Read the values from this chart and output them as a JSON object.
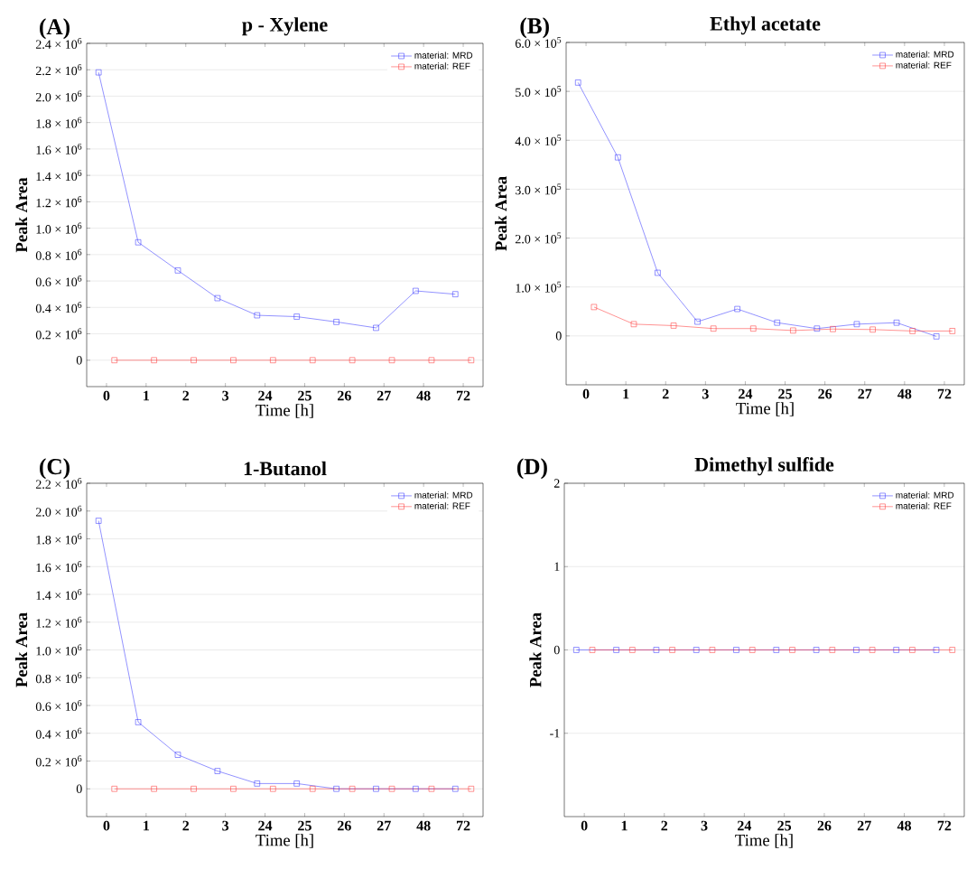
{
  "chart_data": [
    {
      "type": "line",
      "title": "p - Xylene",
      "xlabel": "Time [h]",
      "ylabel": "Peak Area",
      "annotations": [
        "(A)"
      ],
      "categories": [
        "0",
        "1",
        "2",
        "3",
        "24",
        "25",
        "26",
        "27",
        "48",
        "72"
      ],
      "series": [
        {
          "name": "material: MRD",
          "color": "#3333ff",
          "values": [
            2180000,
            893000,
            680000,
            470000,
            340000,
            330000,
            290000,
            245000,
            525000,
            500000
          ]
        },
        {
          "name": "material: REF",
          "color": "#ff3333",
          "values": [
            0,
            0,
            0,
            0,
            0,
            0,
            0,
            0,
            0,
            0
          ]
        }
      ],
      "ylim": [
        -200000,
        2400000
      ],
      "yticks": [
        0,
        {
          "value": 200000,
          "label": "0.2 × 10$^{6}$"
        },
        {
          "value": 400000,
          "label": "0.4 × 10$^{6}$"
        },
        {
          "value": 600000,
          "label": "0.6 × 10$^{6}$"
        },
        {
          "value": 800000,
          "label": "0.8 × 10$^{6}$"
        },
        {
          "value": 1000000,
          "label": "1.0 × 10$^{6}$"
        },
        {
          "value": 1200000,
          "label": "1.2 × 10$^{6}$"
        },
        {
          "value": 1400000,
          "label": "1.4 × 10$^{6}$"
        },
        {
          "value": 1600000,
          "label": "1.6 × 10$^{6}$"
        },
        {
          "value": 1800000,
          "label": "1.8 × 10$^{6}$"
        },
        {
          "value": 2000000,
          "label": "2.0 × 10$^{6}$"
        },
        {
          "value": 2200000,
          "label": "2.2 × 10$^{6}$"
        },
        {
          "value": 2400000,
          "label": "2.4 × 10$^{6}$"
        }
      ],
      "grid": "y",
      "legend": "top right",
      "marker": "square"
    },
    {
      "type": "line",
      "title": "Ethyl acetate",
      "xlabel": "Time [h]",
      "ylabel": "Peak Area",
      "annotations": [
        "(B)"
      ],
      "categories": [
        "0",
        "1",
        "2",
        "3",
        "24",
        "25",
        "26",
        "27",
        "48",
        "72"
      ],
      "series": [
        {
          "name": "material: MRD",
          "color": "#3333ff",
          "values": [
            518000,
            365000,
            129000,
            29000,
            55000,
            27000,
            15000,
            24000,
            27000,
            -1000
          ]
        },
        {
          "name": "material: REF",
          "color": "#ff3333",
          "values": [
            59000,
            24000,
            21000,
            15000,
            15000,
            11000,
            14000,
            13000,
            10000,
            10000
          ]
        }
      ],
      "ylim": [
        -100000,
        600000
      ],
      "yticks": [
        0,
        {
          "value": 100000,
          "label": "1.0 × 10$^{5}$"
        },
        {
          "value": 200000,
          "label": "2.0 × 10$^{5}$"
        },
        {
          "value": 300000,
          "label": "3.0 × 10$^{5}$"
        },
        {
          "value": 400000,
          "label": "4.0 × 10$^{5}$"
        },
        {
          "value": 500000,
          "label": "5.0 × 10$^{5}$"
        },
        {
          "value": 600000,
          "label": "6.0 × 10$^{5}$"
        }
      ],
      "grid": "y",
      "legend": "top right",
      "marker": "square"
    },
    {
      "type": "line",
      "title": "1-Butanol",
      "xlabel": "Time [h]",
      "ylabel": "Peak Area",
      "annotations": [
        "(C)"
      ],
      "categories": [
        "0",
        "1",
        "2",
        "3",
        "24",
        "25",
        "26",
        "27",
        "48",
        "72"
      ],
      "series": [
        {
          "name": "material: MRD",
          "color": "#3333ff",
          "values": [
            1930000,
            480000,
            245000,
            128000,
            38000,
            38000,
            0,
            0,
            0,
            0
          ]
        },
        {
          "name": "material: REF",
          "color": "#ff3333",
          "values": [
            0,
            0,
            0,
            0,
            0,
            0,
            0,
            0,
            0,
            0
          ]
        }
      ],
      "ylim": [
        -200000,
        2200000
      ],
      "yticks": [
        0,
        {
          "value": 200000,
          "label": "0.2 × 10$^{6}$"
        },
        {
          "value": 400000,
          "label": "0.4 × 10$^{6}$"
        },
        {
          "value": 600000,
          "label": "0.6 × 10$^{6}$"
        },
        {
          "value": 800000,
          "label": "0.8 × 10$^{6}$"
        },
        {
          "value": 1000000,
          "label": "1.0 × 10$^{6}$"
        },
        {
          "value": 1200000,
          "label": "1.2 × 10$^{6}$"
        },
        {
          "value": 1400000,
          "label": "1.4 × 10$^{6}$"
        },
        {
          "value": 1600000,
          "label": "1.6 × 10$^{6}$"
        },
        {
          "value": 1800000,
          "label": "1.8 × 10$^{6}$"
        },
        {
          "value": 2000000,
          "label": "2.0 × 10$^{6}$"
        },
        {
          "value": 2200000,
          "label": "2.2 × 10$^{6}$"
        }
      ],
      "grid": "y",
      "legend": "top right",
      "marker": "square"
    },
    {
      "type": "line",
      "title": "Dimethyl sulfide",
      "xlabel": "Time [h]",
      "ylabel": "Peak Area",
      "annotations": [
        "(D)"
      ],
      "categories": [
        "0",
        "1",
        "2",
        "3",
        "24",
        "25",
        "26",
        "27",
        "48",
        "72"
      ],
      "series": [
        {
          "name": "material: MRD",
          "color": "#3333ff",
          "values": [
            0,
            0,
            0,
            0,
            0,
            0,
            0,
            0,
            0,
            0
          ]
        },
        {
          "name": "material: REF",
          "color": "#ff3333",
          "values": [
            0,
            0,
            0,
            0,
            0,
            0,
            0,
            0,
            0,
            0
          ]
        }
      ],
      "ylim": [
        -2,
        2
      ],
      "yticks": [
        -1,
        0,
        1,
        2
      ],
      "grid": "y",
      "legend": "top right",
      "marker": "square"
    }
  ]
}
